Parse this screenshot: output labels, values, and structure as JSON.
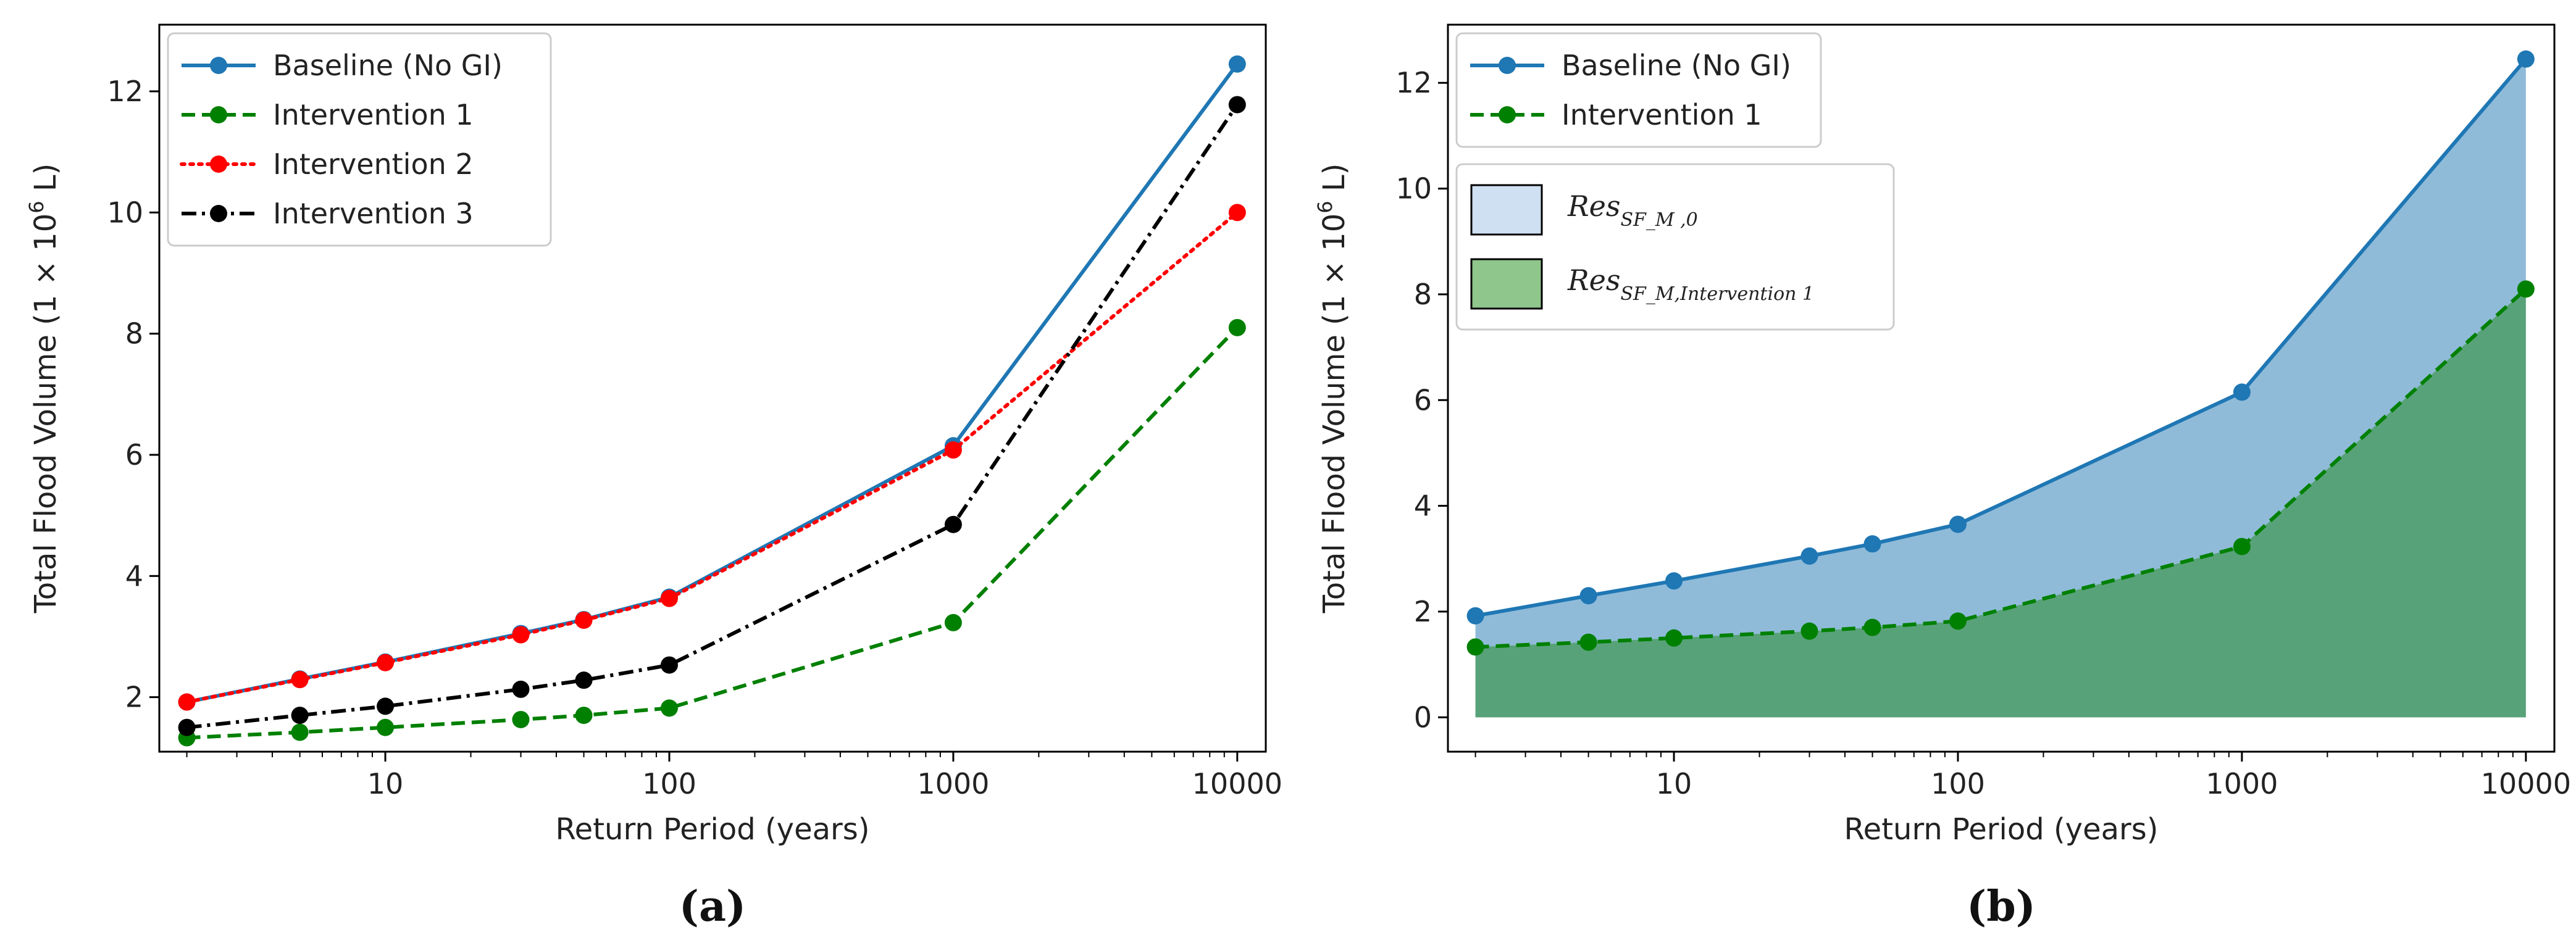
{
  "chart_data": [
    {
      "type": "line",
      "panel_label": "(a)",
      "xscale": "log",
      "x": [
        2,
        5,
        10,
        30,
        50,
        100,
        1000,
        10000
      ],
      "xticks": [
        10,
        100,
        1000,
        10000
      ],
      "xtick_labels": [
        "10",
        "100",
        "1000",
        "10000"
      ],
      "xlim": [
        1.6,
        12600
      ],
      "ylim": [
        1.1,
        13.1
      ],
      "yticks": [
        2,
        4,
        6,
        8,
        10,
        12
      ],
      "ytick_labels": [
        "2",
        "4",
        "6",
        "8",
        "10",
        "12"
      ],
      "xlabel": "Return Period (years)",
      "ylabel_prefix": "Total Flood Volume (1 × 10",
      "ylabel_exp": "6",
      "ylabel_suffix": " L)",
      "legend_position": "top-left",
      "series": [
        {
          "name": "Baseline (No GI)",
          "color": "#1f77b4",
          "dash": "solid",
          "values": [
            1.92,
            2.3,
            2.58,
            3.05,
            3.28,
            3.65,
            6.15,
            12.45
          ]
        },
        {
          "name": "Intervention 1",
          "color": "#008000",
          "dash": "dashed",
          "values": [
            1.33,
            1.42,
            1.5,
            1.63,
            1.7,
            1.82,
            3.23,
            8.1
          ]
        },
        {
          "name": "Intervention 2",
          "color": "#ff0000",
          "dash": "dotted",
          "values": [
            1.92,
            2.29,
            2.57,
            3.03,
            3.27,
            3.63,
            6.08,
            10.0
          ]
        },
        {
          "name": "Intervention 3",
          "color": "#000000",
          "dash": "dashdot",
          "values": [
            1.5,
            1.7,
            1.85,
            2.13,
            2.28,
            2.53,
            4.85,
            11.78
          ]
        }
      ]
    },
    {
      "type": "area",
      "panel_label": "(b)",
      "xscale": "log",
      "x": [
        2,
        5,
        10,
        30,
        50,
        100,
        1000,
        10000
      ],
      "xticks": [
        10,
        100,
        1000,
        10000
      ],
      "xtick_labels": [
        "10",
        "100",
        "1000",
        "10000"
      ],
      "xlim": [
        1.6,
        12600
      ],
      "ylim": [
        -0.65,
        13.1
      ],
      "yticks": [
        0,
        2,
        4,
        6,
        8,
        10,
        12
      ],
      "ytick_labels": [
        "0",
        "2",
        "4",
        "6",
        "8",
        "10",
        "12"
      ],
      "xlabel": "Return Period (years)",
      "ylabel_prefix": "Total Flood Volume (1 × 10",
      "ylabel_exp": "6",
      "ylabel_suffix": " L)",
      "legend_position": "top-left",
      "series": [
        {
          "name": "Baseline (No GI)",
          "color": "#1f77b4",
          "dash": "solid",
          "values": [
            1.92,
            2.3,
            2.58,
            3.05,
            3.28,
            3.65,
            6.15,
            12.45
          ]
        },
        {
          "name": "Intervention 1",
          "color": "#008000",
          "dash": "dashed",
          "values": [
            1.33,
            1.42,
            1.5,
            1.63,
            1.7,
            1.82,
            3.23,
            8.1
          ]
        }
      ],
      "fill_legend": [
        {
          "base": "Res",
          "sub": "SF_M ,0",
          "face": "#cfe0f2"
        },
        {
          "base": "Res",
          "sub": "SF_M,Intervention 1",
          "face": "#8fc68b"
        }
      ],
      "fill_colors": {
        "baseline_area": "#1f77b4",
        "intervention_area": "#2e8b57"
      }
    }
  ]
}
